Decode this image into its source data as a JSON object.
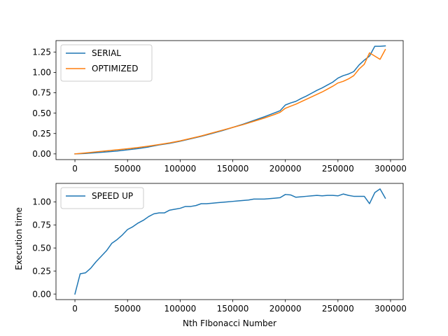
{
  "chart_data": [
    {
      "type": "line",
      "xlabel": "",
      "ylabel": "",
      "xlim": [
        -18000,
        312000
      ],
      "ylim": [
        -0.07,
        1.39
      ],
      "xticks": [
        0,
        50000,
        100000,
        150000,
        200000,
        250000,
        300000
      ],
      "xtick_labels": [
        "0",
        "50000",
        "100000",
        "150000",
        "200000",
        "250000",
        "300000"
      ],
      "yticks": [
        0.0,
        0.25,
        0.5,
        0.75,
        1.0,
        1.25
      ],
      "ytick_labels": [
        "0.00",
        "0.25",
        "0.50",
        "0.75",
        "1.00",
        "1.25"
      ],
      "grid": false,
      "legend_position": "upper-left",
      "x": [
        0,
        10000,
        20000,
        30000,
        40000,
        50000,
        60000,
        70000,
        80000,
        90000,
        100000,
        110000,
        120000,
        130000,
        140000,
        150000,
        160000,
        170000,
        180000,
        190000,
        195000,
        200000,
        205000,
        210000,
        215000,
        220000,
        225000,
        230000,
        235000,
        240000,
        245000,
        250000,
        255000,
        260000,
        265000,
        270000,
        275000,
        280000,
        285000,
        290000,
        295000
      ],
      "series": [
        {
          "name": "SERIAL",
          "color": "#1f77b4",
          "values": [
            0.0,
            0.005,
            0.015,
            0.025,
            0.035,
            0.05,
            0.065,
            0.085,
            0.11,
            0.13,
            0.155,
            0.185,
            0.215,
            0.25,
            0.285,
            0.325,
            0.365,
            0.41,
            0.455,
            0.505,
            0.53,
            0.6,
            0.625,
            0.645,
            0.68,
            0.71,
            0.745,
            0.78,
            0.81,
            0.845,
            0.88,
            0.93,
            0.96,
            0.98,
            1.01,
            1.09,
            1.15,
            1.2,
            1.32,
            1.32,
            1.325
          ]
        },
        {
          "name": "OPTIMIZED",
          "color": "#ff7f0e",
          "values": [
            0.0,
            0.012,
            0.025,
            0.037,
            0.05,
            0.063,
            0.078,
            0.095,
            0.115,
            0.135,
            0.16,
            0.19,
            0.22,
            0.255,
            0.29,
            0.325,
            0.36,
            0.4,
            0.44,
            0.485,
            0.51,
            0.56,
            0.585,
            0.61,
            0.64,
            0.67,
            0.7,
            0.73,
            0.76,
            0.795,
            0.83,
            0.87,
            0.89,
            0.92,
            0.96,
            1.04,
            1.1,
            1.24,
            1.2,
            1.16,
            1.28
          ]
        }
      ]
    },
    {
      "type": "line",
      "xlabel": "Nth FIbonacci Number",
      "ylabel": "Execution time",
      "xlim": [
        -18000,
        312000
      ],
      "ylim": [
        -0.06,
        1.2
      ],
      "xticks": [
        0,
        50000,
        100000,
        150000,
        200000,
        250000,
        300000
      ],
      "xtick_labels": [
        "0",
        "50000",
        "100000",
        "150000",
        "200000",
        "250000",
        "300000"
      ],
      "yticks": [
        0.0,
        0.25,
        0.5,
        0.75,
        1.0
      ],
      "ytick_labels": [
        "0.00",
        "0.25",
        "0.50",
        "0.75",
        "1.00"
      ],
      "grid": false,
      "legend_position": "upper-left",
      "x": [
        0,
        5000,
        10000,
        15000,
        20000,
        25000,
        30000,
        35000,
        40000,
        45000,
        50000,
        55000,
        60000,
        65000,
        70000,
        75000,
        80000,
        85000,
        90000,
        95000,
        100000,
        105000,
        110000,
        115000,
        120000,
        125000,
        130000,
        135000,
        140000,
        145000,
        150000,
        155000,
        160000,
        165000,
        170000,
        175000,
        180000,
        185000,
        190000,
        195000,
        200000,
        205000,
        210000,
        215000,
        220000,
        225000,
        230000,
        235000,
        240000,
        245000,
        250000,
        255000,
        260000,
        265000,
        270000,
        275000,
        280000,
        285000,
        290000,
        295000
      ],
      "series": [
        {
          "name": "SPEED UP",
          "color": "#1f77b4",
          "values": [
            0.0,
            0.22,
            0.23,
            0.28,
            0.35,
            0.41,
            0.47,
            0.55,
            0.59,
            0.64,
            0.7,
            0.73,
            0.77,
            0.8,
            0.84,
            0.87,
            0.88,
            0.88,
            0.91,
            0.92,
            0.93,
            0.95,
            0.95,
            0.96,
            0.98,
            0.98,
            0.985,
            0.99,
            0.995,
            1.0,
            1.005,
            1.01,
            1.015,
            1.02,
            1.03,
            1.03,
            1.03,
            1.035,
            1.04,
            1.045,
            1.08,
            1.075,
            1.05,
            1.055,
            1.06,
            1.065,
            1.07,
            1.065,
            1.07,
            1.07,
            1.065,
            1.085,
            1.07,
            1.06,
            1.06,
            1.06,
            0.98,
            1.1,
            1.14,
            1.04
          ]
        }
      ]
    }
  ]
}
